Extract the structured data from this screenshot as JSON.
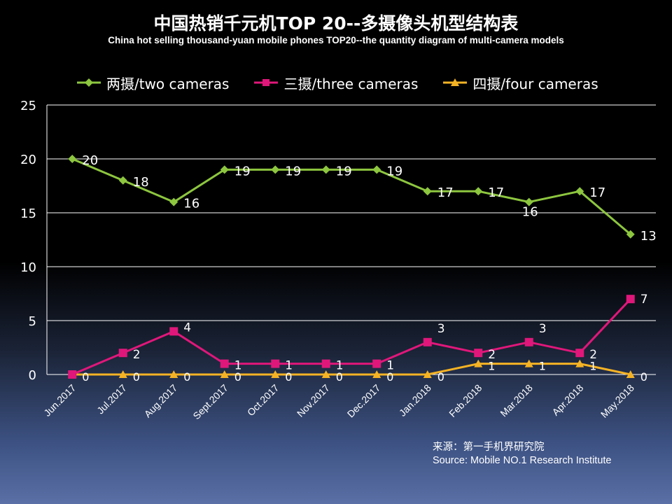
{
  "title": "中国热销千元机TOP 20--多摄像头机型结构表",
  "subtitle": "China hot selling thousand-yuan mobile phones TOP20--the quantity diagram of multi-camera models",
  "source": {
    "line1": "来源：第一手机界研究院",
    "line2": "Source: Mobile NO.1 Research Institute"
  },
  "colors": {
    "two": "#8dc63f",
    "three": "#e0177a",
    "four": "#f5b324"
  },
  "chart_data": {
    "type": "line",
    "title": "中国热销千元机TOP 20--多摄像头机型结构表",
    "categories": [
      "Jun.2017",
      "Jul.2017",
      "Aug.2017",
      "Sept.2017",
      "Oct.2017",
      "Nov.2017",
      "Dec.2017",
      "Jan.2018",
      "Feb.2018",
      "Mar.2018",
      "Apr.2018",
      "May.2018"
    ],
    "ylim": [
      0,
      25
    ],
    "yticks": [
      0,
      5,
      10,
      15,
      20,
      25
    ],
    "legend_position": "top",
    "grid": true,
    "series": [
      {
        "key": "two",
        "name": "两摄/two cameras",
        "marker": "diamond",
        "values": [
          20,
          18,
          16,
          19,
          19,
          19,
          19,
          17,
          17,
          16,
          17,
          13
        ]
      },
      {
        "key": "three",
        "name": "三摄/three cameras",
        "marker": "square",
        "values": [
          0,
          2,
          4,
          1,
          1,
          1,
          1,
          3,
          2,
          3,
          2,
          7
        ]
      },
      {
        "key": "four",
        "name": "四摄/four cameras",
        "marker": "triangle",
        "values": [
          0,
          0,
          0,
          0,
          0,
          0,
          0,
          0,
          1,
          1,
          1,
          0
        ]
      }
    ]
  }
}
